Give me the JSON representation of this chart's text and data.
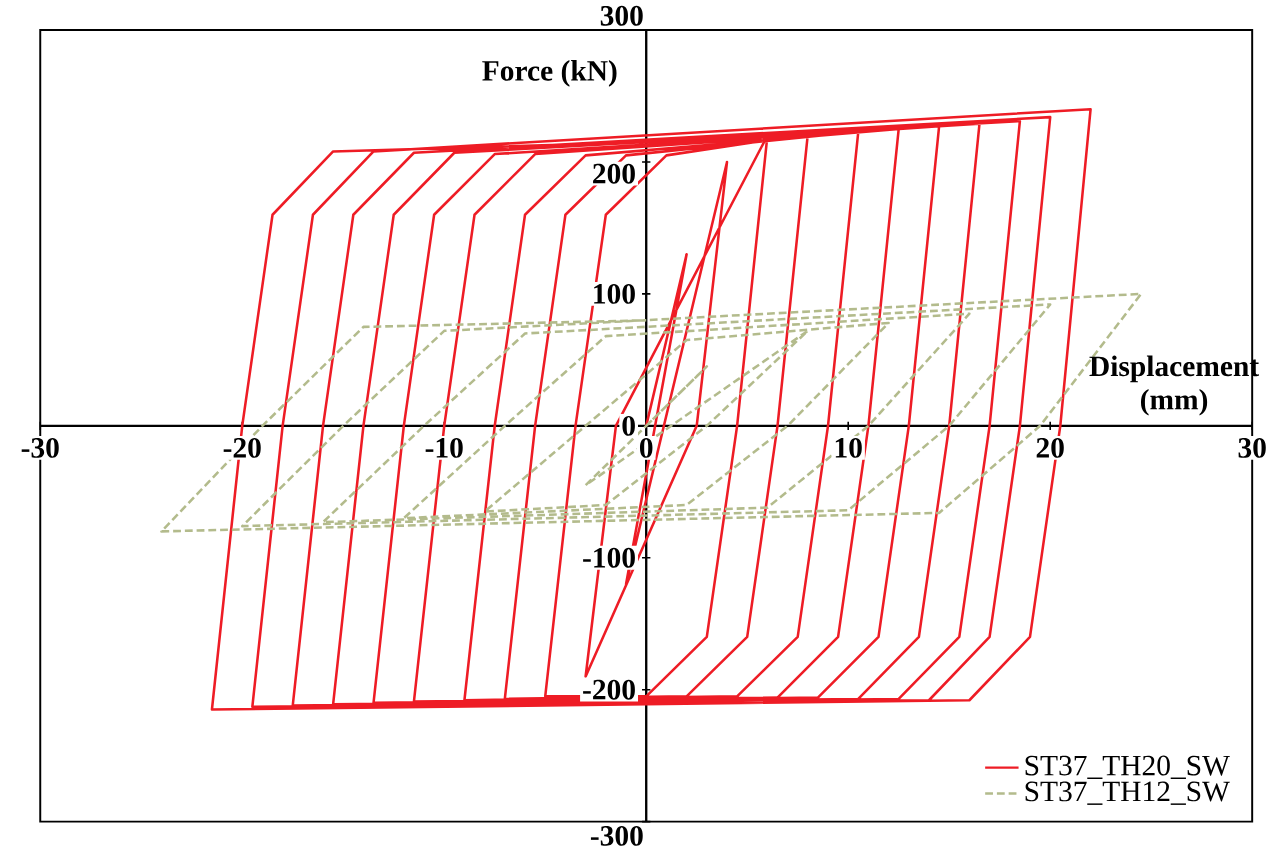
{
  "chart_data": {
    "type": "line",
    "xlabel": "Displacement (mm)",
    "ylabel": "Force (kN)",
    "xlim": [
      -30,
      30
    ],
    "ylim": [
      -300,
      300
    ],
    "xticks": [
      -30,
      -20,
      -10,
      0,
      10,
      20,
      30
    ],
    "yticks": [
      -300,
      -200,
      -100,
      0,
      100,
      200,
      300
    ],
    "legend": "bottom right",
    "grid": false,
    "marker": "none",
    "series": [
      {
        "name": "ST37_TH20_SW",
        "color": "#ee1c25",
        "line_style": "solid",
        "x": [
          0,
          2,
          -1,
          4,
          2.5,
          -3,
          -1.5,
          6,
          4.5,
          3,
          0,
          -5,
          -3.5,
          -2,
          1,
          8,
          6.5,
          5,
          2,
          -7,
          -5.5,
          -4,
          -1,
          10.5,
          9,
          7.5,
          4.5,
          -9,
          -7.5,
          -6,
          -3,
          12.5,
          11,
          9.5,
          6.5,
          -11.5,
          -10,
          -8.5,
          -5.5,
          14.5,
          13,
          11.5,
          8.5,
          -13.5,
          -12,
          -10.5,
          -7.5,
          16.5,
          15,
          13.5,
          10.5,
          -15.5,
          -14,
          -12.5,
          -9.5,
          18.5,
          17,
          15.5,
          12.5,
          -17.5,
          -16,
          -14.5,
          -11.5,
          20,
          18.5,
          17,
          14,
          -19.5,
          -18,
          -16.5,
          -13.5,
          22,
          20.5,
          19,
          16,
          -21.5,
          -20,
          -18.5,
          -15.5,
          0
        ],
        "values": [
          0,
          130,
          -120,
          200,
          0,
          -190,
          0,
          220,
          0,
          -160,
          -205,
          -205,
          0,
          160,
          205,
          221,
          0,
          -160,
          -205,
          -207,
          0,
          160,
          205,
          223,
          0,
          -160,
          -205,
          -208,
          0,
          160,
          205,
          225,
          0,
          -160,
          -206,
          -209,
          0,
          160,
          206,
          227,
          0,
          -160,
          -206,
          -210,
          0,
          160,
          206,
          229,
          0,
          -160,
          -207,
          -211,
          0,
          160,
          207,
          231,
          0,
          -160,
          -207,
          -212,
          0,
          160,
          207,
          234,
          0,
          -160,
          -208,
          -213,
          0,
          160,
          208,
          240,
          0,
          -160,
          -208,
          -215,
          0,
          160,
          208,
          215
        ]
      },
      {
        "name": "ST37_TH12_SW",
        "color": "#b3bb8c",
        "line_style": "dashed",
        "x": [
          0,
          3,
          -3,
          8,
          3,
          -2,
          -8,
          -3,
          2,
          12,
          7,
          2,
          -12,
          -7,
          -2,
          16,
          11,
          6,
          -16,
          -11,
          -6,
          20,
          15,
          10,
          -20,
          -15,
          -10,
          24.5,
          19.5,
          14.5,
          -24,
          -19,
          -14,
          0
        ],
        "values": [
          0,
          45,
          -45,
          72,
          0,
          -60,
          -65,
          0,
          65,
          78,
          0,
          -60,
          -70,
          0,
          68,
          85,
          0,
          -62,
          -73,
          0,
          70,
          92,
          0,
          -64,
          -76,
          0,
          72,
          100,
          0,
          -66,
          -80,
          0,
          75,
          80
        ]
      }
    ]
  }
}
